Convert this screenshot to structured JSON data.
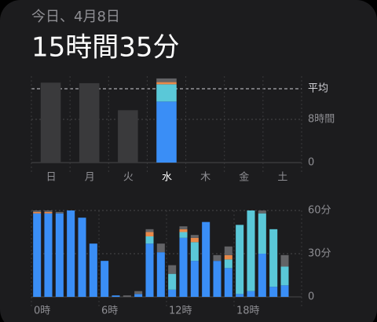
{
  "header": {
    "date": "今日、4月8日",
    "total": "15時間35分"
  },
  "chart_data": [
    {
      "type": "bar",
      "stacked": true,
      "categories": [
        "日",
        "月",
        "火",
        "水",
        "木",
        "金",
        "土"
      ],
      "highlight": "水",
      "series": [
        {
          "color": "#3a3a3c",
          "values": [
            14.8,
            14.7,
            9.7,
            null,
            null,
            null,
            null
          ]
        },
        {
          "color": "#3a8ef6",
          "values": [
            null,
            null,
            null,
            11.3,
            null,
            null,
            null
          ]
        },
        {
          "color": "#5ac8d8",
          "values": [
            null,
            null,
            null,
            3.2,
            null,
            null,
            null
          ]
        },
        {
          "color": "#e8894a",
          "values": [
            null,
            null,
            null,
            0.4,
            null,
            null,
            null
          ]
        },
        {
          "color": "#636366",
          "values": [
            null,
            null,
            null,
            0.68,
            null,
            null,
            null
          ]
        }
      ],
      "ylim": [
        0,
        16
      ],
      "yticks": [
        {
          "value": 13.67,
          "label": "平均"
        },
        {
          "value": 8,
          "label": "8時間"
        },
        0
      ],
      "grid": true
    },
    {
      "type": "bar",
      "stacked": true,
      "categories": [
        "0時",
        null,
        null,
        null,
        null,
        null,
        "6時",
        null,
        null,
        null,
        null,
        null,
        "12時",
        null,
        null,
        null,
        null,
        null,
        "18時",
        null,
        null,
        null,
        null,
        null
      ],
      "series": [
        {
          "color": "#3a8ef6",
          "values": [
            58,
            58,
            58,
            60,
            55,
            37,
            25,
            1,
            0,
            2,
            37,
            31,
            5,
            41,
            25,
            52,
            25,
            20,
            2,
            4,
            30,
            7,
            8,
            null
          ]
        },
        {
          "color": "#5ac8d8",
          "values": [
            0,
            0,
            0,
            0,
            0,
            0,
            0,
            0,
            0,
            0,
            5,
            0,
            11,
            4,
            13,
            0,
            0,
            6,
            48,
            56,
            28,
            40,
            13,
            null
          ]
        },
        {
          "color": "#e8894a",
          "values": [
            1,
            1,
            0,
            0,
            0,
            0,
            0,
            0,
            0,
            0,
            3,
            0,
            0,
            2,
            3,
            0,
            0,
            3,
            0,
            0,
            0,
            0,
            0,
            null
          ]
        },
        {
          "color": "#636366",
          "values": [
            1,
            1,
            1,
            0,
            0,
            0,
            0,
            0,
            1,
            2,
            2,
            6,
            6,
            2,
            2,
            0,
            4,
            6,
            0,
            0,
            2,
            0,
            8,
            null
          ]
        }
      ],
      "ylim": [
        0,
        60
      ],
      "yticks": [
        {
          "value": 60,
          "label": "60分"
        },
        {
          "value": 30,
          "label": "30分"
        },
        0
      ],
      "grid": true
    }
  ]
}
